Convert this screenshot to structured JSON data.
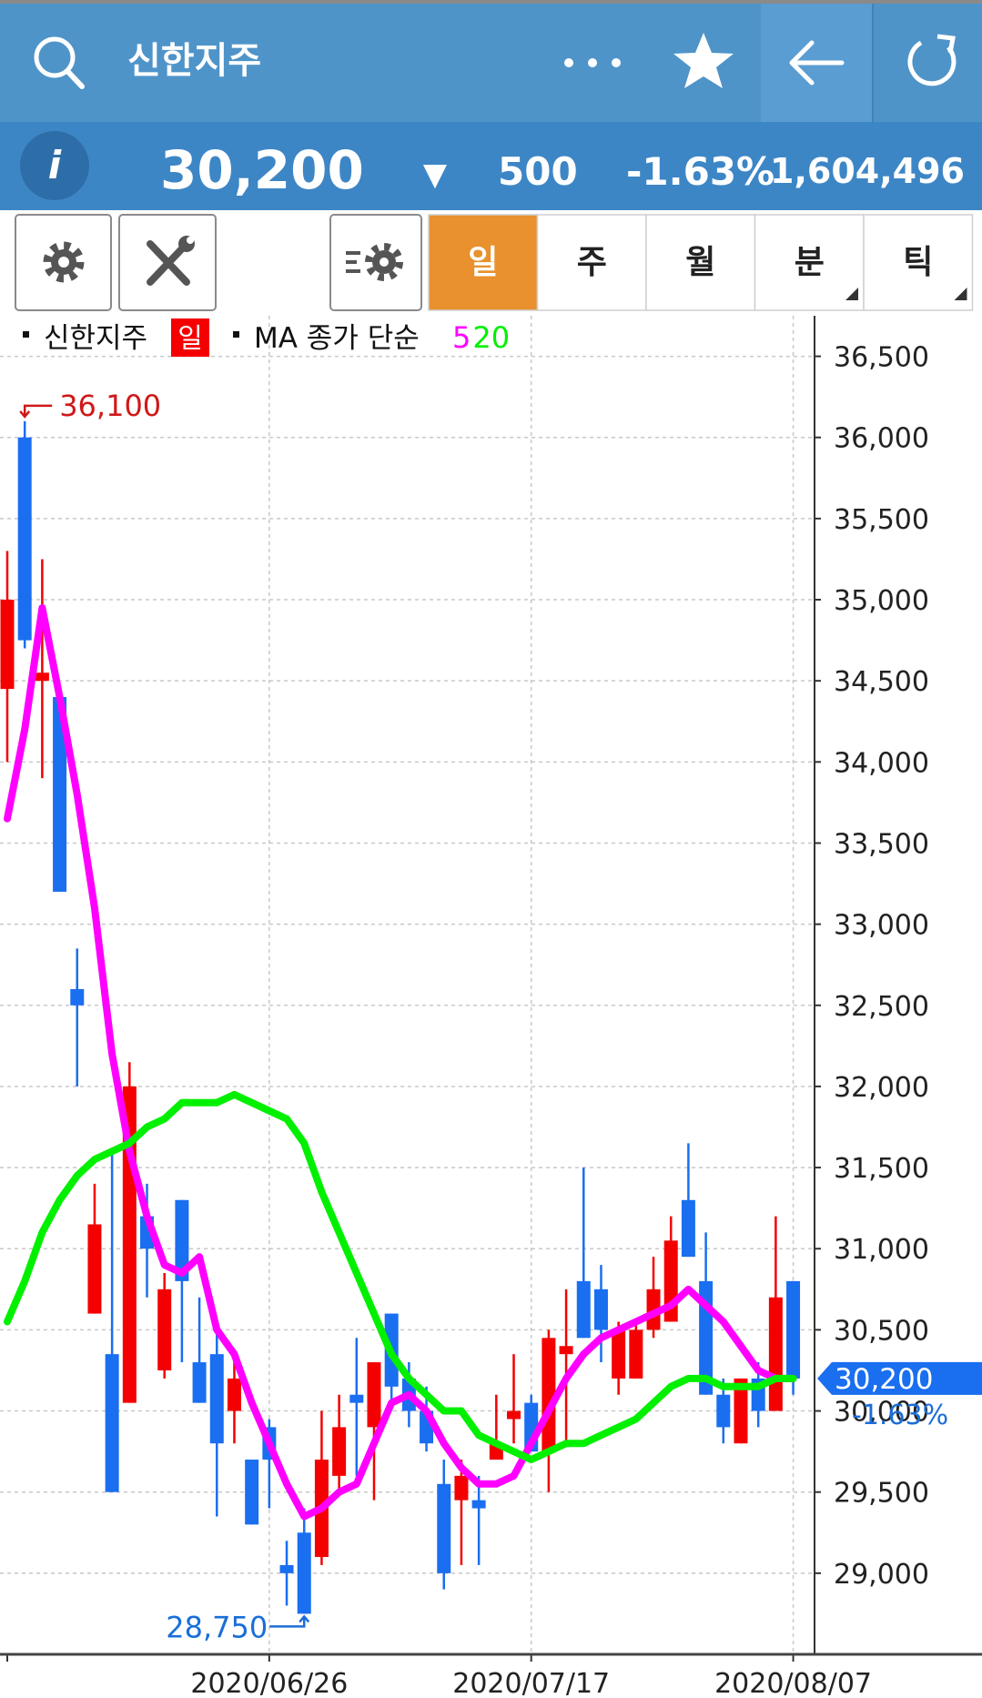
{
  "header": {
    "title": "신한지주"
  },
  "quote": {
    "info": "i",
    "price": "30,200",
    "direction": "▼",
    "change": "500",
    "change_pct": "-1.63%",
    "volume": "1,604,496"
  },
  "tabs": [
    {
      "label": "일",
      "active": true
    },
    {
      "label": "주",
      "active": false
    },
    {
      "label": "월",
      "active": false
    },
    {
      "label": "분",
      "active": false,
      "menu": true
    },
    {
      "label": "틱",
      "active": false,
      "menu": true
    }
  ],
  "chart_data": {
    "type": "candlestick",
    "legend": {
      "symbol": "신한지주",
      "period": "일",
      "indicator": "MA 종가 단순"
    },
    "x": [
      null,
      null,
      null,
      null,
      null,
      null,
      null,
      null,
      null,
      null,
      null,
      null,
      null,
      null,
      null,
      "2020/06/26",
      null,
      null,
      null,
      null,
      null,
      null,
      null,
      null,
      null,
      null,
      null,
      null,
      null,
      null,
      "2020/07/17",
      null,
      null,
      null,
      null,
      null,
      null,
      null,
      null,
      null,
      null,
      null,
      null,
      null,
      null,
      "2020/08/07"
    ],
    "open": [
      34450,
      36000,
      34500,
      34400,
      32600,
      30600,
      30350,
      30050,
      31200,
      30250,
      31300,
      30300,
      30350,
      30000,
      29700,
      29900,
      29050,
      29250,
      29100,
      29600,
      30100,
      29900,
      30600,
      30200,
      30000,
      29550,
      29450,
      29450,
      29700,
      29950,
      30050,
      29750,
      30350,
      30800,
      30750,
      30200,
      30200,
      30500,
      30550,
      31300,
      30800,
      30100,
      29800,
      30200,
      30000,
      30800
    ],
    "high": [
      35300,
      36100,
      35250,
      34400,
      32850,
      31400,
      31600,
      32150,
      31400,
      30850,
      31300,
      30700,
      30500,
      30350,
      29700,
      29950,
      29200,
      29400,
      30000,
      30100,
      30450,
      30300,
      30600,
      30300,
      30150,
      29700,
      29700,
      29600,
      30100,
      30350,
      30100,
      30500,
      30750,
      31500,
      30900,
      30550,
      30550,
      30950,
      31200,
      31650,
      31100,
      30200,
      30200,
      30300,
      31200,
      30800
    ],
    "low": [
      34000,
      34700,
      33900,
      33200,
      32000,
      30600,
      29500,
      30050,
      30700,
      30200,
      30300,
      30050,
      29350,
      29800,
      29300,
      29400,
      28800,
      28750,
      29050,
      29500,
      29600,
      29450,
      30000,
      29900,
      29750,
      28900,
      29050,
      29050,
      29700,
      29800,
      29750,
      29500,
      29800,
      30450,
      30300,
      30100,
      30200,
      30450,
      30550,
      30950,
      30100,
      29800,
      29800,
      29900,
      30000,
      30100
    ],
    "close": [
      35000,
      34750,
      34550,
      33200,
      32500,
      31150,
      29500,
      32000,
      31000,
      30750,
      30800,
      30050,
      29800,
      30200,
      29300,
      29700,
      29000,
      28750,
      29700,
      29900,
      30050,
      30300,
      30150,
      30000,
      29800,
      29000,
      29600,
      29400,
      29800,
      30000,
      29750,
      30450,
      30400,
      30450,
      30500,
      30500,
      30500,
      30750,
      31050,
      30950,
      30100,
      29900,
      30200,
      30000,
      30700,
      30200
    ],
    "up_color": "#f40000",
    "down_color": "#1a6ef0",
    "series": [
      {
        "name": "5",
        "color": "#ff00ff",
        "values": [
          33650,
          34200,
          34950,
          34400,
          33800,
          33100,
          32200,
          31600,
          31200,
          30900,
          30850,
          30950,
          30500,
          30350,
          30050,
          29800,
          29550,
          29350,
          29400,
          29500,
          29550,
          29800,
          30050,
          30100,
          30000,
          29800,
          29650,
          29550,
          29550,
          29600,
          29800,
          30000,
          30200,
          30350,
          30450,
          30500,
          30550,
          30600,
          30650,
          30750,
          30650,
          30550,
          30400,
          30250,
          30200,
          30200
        ]
      },
      {
        "name": "20",
        "color": "#00f000",
        "values": [
          30550,
          30800,
          31100,
          31300,
          31450,
          31550,
          31600,
          31650,
          31750,
          31800,
          31900,
          31900,
          31900,
          31950,
          31900,
          31850,
          31800,
          31650,
          31350,
          31100,
          30850,
          30600,
          30350,
          30200,
          30100,
          30000,
          30000,
          29850,
          29800,
          29750,
          29700,
          29750,
          29800,
          29800,
          29850,
          29900,
          29950,
          30050,
          30150,
          30200,
          30200,
          30150,
          30150,
          30150,
          30200,
          30200
        ]
      }
    ],
    "ylim": [
      28500,
      36750
    ],
    "yticks": [
      {
        "value": 29000,
        "label": "29,000"
      },
      {
        "value": 29500,
        "label": "29,500"
      },
      {
        "value": 30000,
        "label": "30,000"
      },
      {
        "value": 30500,
        "label": "30,500"
      },
      {
        "value": 31000,
        "label": "31,000"
      },
      {
        "value": 31500,
        "label": "31,500"
      },
      {
        "value": 32000,
        "label": "32,000"
      },
      {
        "value": 32500,
        "label": "32,500"
      },
      {
        "value": 33000,
        "label": "33,000"
      },
      {
        "value": 33500,
        "label": "33,500"
      },
      {
        "value": 34000,
        "label": "34,000"
      },
      {
        "value": 34500,
        "label": "34,500"
      },
      {
        "value": 35000,
        "label": "35,000"
      },
      {
        "value": 35500,
        "label": "35,500"
      },
      {
        "value": 36000,
        "label": "36,000"
      },
      {
        "value": 36500,
        "label": "36,500"
      }
    ],
    "grid": true,
    "annotations": {
      "high": {
        "value": 36100,
        "label": "36,100"
      },
      "low": {
        "value": 28750,
        "label": "28,750"
      },
      "last": {
        "value": 30200,
        "label": "30,200",
        "change": "-1.63%"
      }
    }
  }
}
